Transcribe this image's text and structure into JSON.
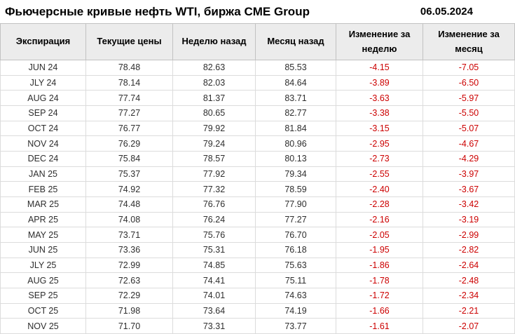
{
  "header": {
    "title": "Фьючерсные кривые нефть WTI, биржа CME Group",
    "date": "06.05.2024"
  },
  "colors": {
    "negative_value": "#cc0000",
    "header_background": "#ececec",
    "border": "#dcdcdc",
    "text": "#2e2e2e"
  },
  "chart_data": {
    "type": "table",
    "title": "Фьючерсные кривые нефть WTI, биржа CME Group",
    "date": "06.05.2024",
    "columns": [
      "Экспирация",
      "Текущие цены",
      "Неделю назад",
      "Месяц назад",
      "Изменение за неделю",
      "Изменение за месяц"
    ],
    "rows": [
      [
        "JUN 24",
        "78.48",
        "82.63",
        "85.53",
        "-4.15",
        "-7.05"
      ],
      [
        "JLY 24",
        "78.14",
        "82.03",
        "84.64",
        "-3.89",
        "-6.50"
      ],
      [
        "AUG 24",
        "77.74",
        "81.37",
        "83.71",
        "-3.63",
        "-5.97"
      ],
      [
        "SEP 24",
        "77.27",
        "80.65",
        "82.77",
        "-3.38",
        "-5.50"
      ],
      [
        "OCT 24",
        "76.77",
        "79.92",
        "81.84",
        "-3.15",
        "-5.07"
      ],
      [
        "NOV 24",
        "76.29",
        "79.24",
        "80.96",
        "-2.95",
        "-4.67"
      ],
      [
        "DEC 24",
        "75.84",
        "78.57",
        "80.13",
        "-2.73",
        "-4.29"
      ],
      [
        "JAN 25",
        "75.37",
        "77.92",
        "79.34",
        "-2.55",
        "-3.97"
      ],
      [
        "FEB 25",
        "74.92",
        "77.32",
        "78.59",
        "-2.40",
        "-3.67"
      ],
      [
        "MAR 25",
        "74.48",
        "76.76",
        "77.90",
        "-2.28",
        "-3.42"
      ],
      [
        "APR 25",
        "74.08",
        "76.24",
        "77.27",
        "-2.16",
        "-3.19"
      ],
      [
        "MAY 25",
        "73.71",
        "75.76",
        "76.70",
        "-2.05",
        "-2.99"
      ],
      [
        "JUN 25",
        "73.36",
        "75.31",
        "76.18",
        "-1.95",
        "-2.82"
      ],
      [
        "JLY 25",
        "72.99",
        "74.85",
        "75.63",
        "-1.86",
        "-2.64"
      ],
      [
        "AUG 25",
        "72.63",
        "74.41",
        "75.11",
        "-1.78",
        "-2.48"
      ],
      [
        "SEP 25",
        "72.29",
        "74.01",
        "74.63",
        "-1.72",
        "-2.34"
      ],
      [
        "OCT 25",
        "71.98",
        "73.64",
        "74.19",
        "-1.66",
        "-2.21"
      ],
      [
        "NOV 25",
        "71.70",
        "73.31",
        "73.77",
        "-1.61",
        "-2.07"
      ]
    ]
  }
}
